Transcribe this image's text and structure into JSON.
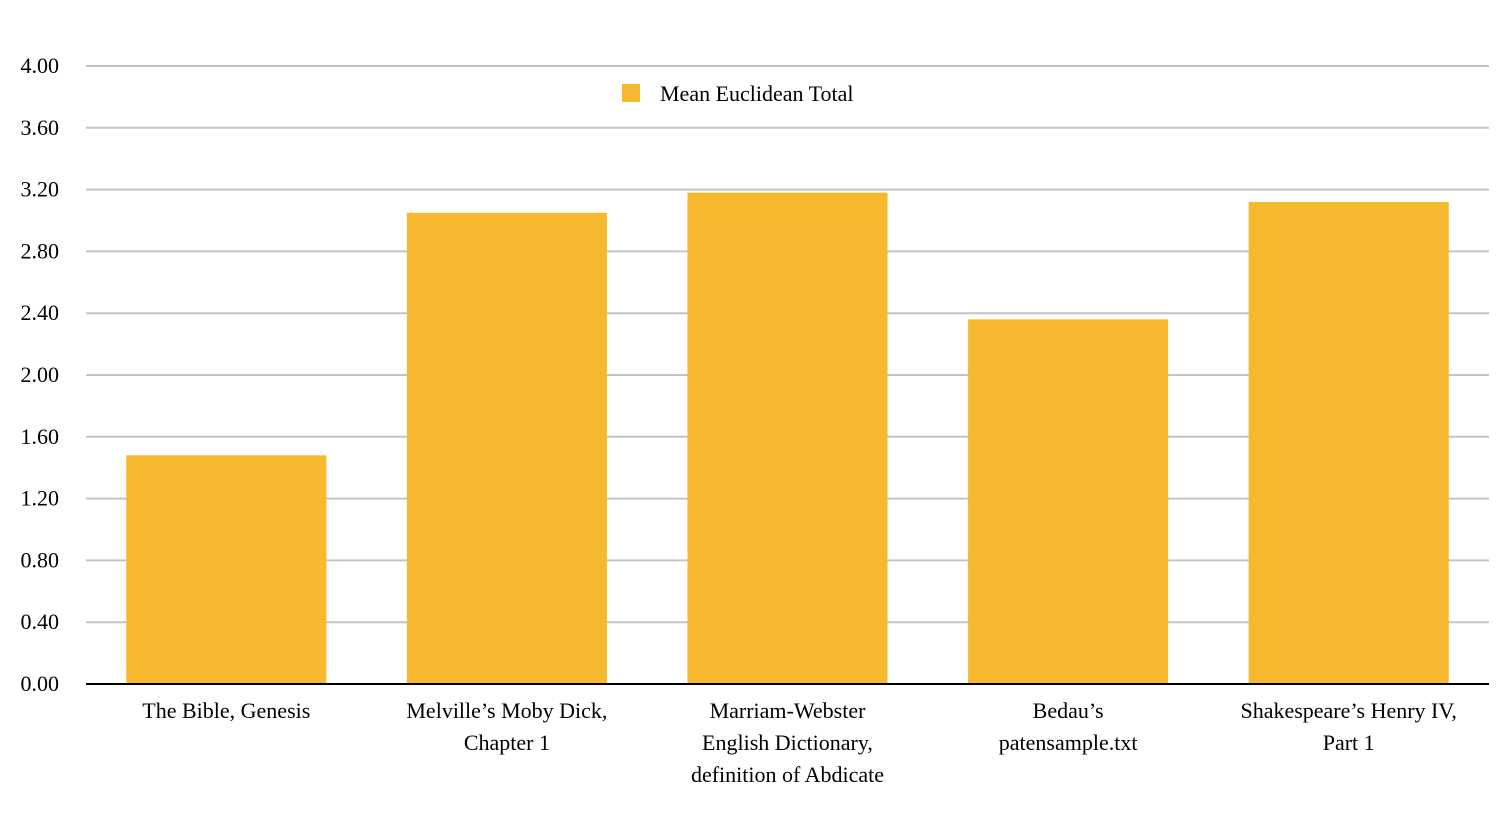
{
  "chart_data": {
    "type": "bar",
    "title": "",
    "xlabel": "",
    "ylabel": "",
    "categories": [
      [
        "The Bible, Genesis"
      ],
      [
        "Melville’s Moby Dick,",
        "Chapter 1"
      ],
      [
        "Marriam-Webster",
        "English Dictionary,",
        "definition of Abdicate"
      ],
      [
        "Bedau’s",
        "patensample.txt"
      ],
      [
        "Shakespeare’s Henry IV,",
        "Part 1"
      ]
    ],
    "series": [
      {
        "name": "Mean Euclidean Total",
        "color": "#F5B82E",
        "values": [
          1.48,
          3.05,
          3.18,
          2.36,
          3.12
        ]
      }
    ],
    "ylim": [
      0,
      4
    ],
    "yticks": [
      "0.00",
      "0.40",
      "0.80",
      "1.20",
      "1.60",
      "2.00",
      "2.40",
      "2.80",
      "3.20",
      "3.60",
      "4.00"
    ],
    "grid": true,
    "legend_position": "top-center"
  }
}
